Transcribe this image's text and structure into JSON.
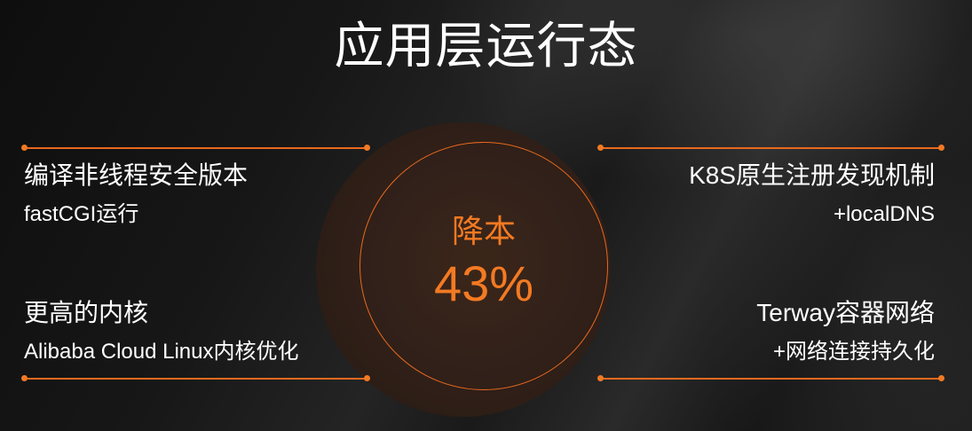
{
  "slide": {
    "title": "应用层运行态",
    "center": {
      "label": "降本",
      "value": "43%"
    },
    "blocks": {
      "top_left": {
        "line1": "编译非线程安全版本",
        "line2": "fastCGI运行"
      },
      "top_right": {
        "line1": "K8S原生注册发现机制",
        "line2": "+localDNS"
      },
      "bottom_left": {
        "line1": "更高的内核",
        "line2": "Alibaba Cloud Linux内核优化"
      },
      "bottom_right": {
        "line1": "Terway容器网络",
        "line2": "+网络连接持久化"
      }
    }
  },
  "colors": {
    "accent": "#f47a22",
    "text": "#ffffff",
    "background": "#1a1a1a",
    "disc": "#32211a"
  }
}
